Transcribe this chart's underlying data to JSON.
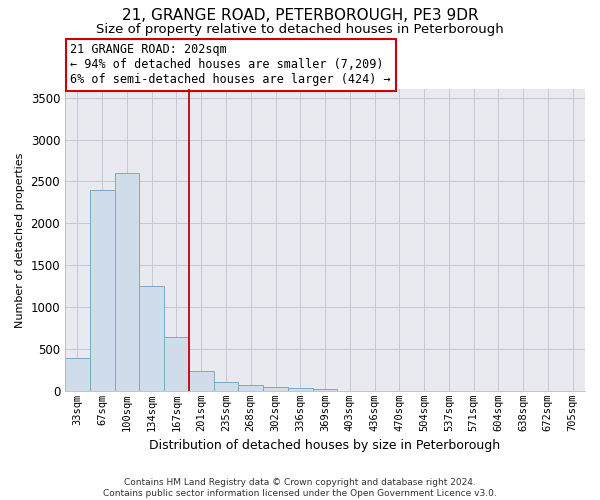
{
  "title": "21, GRANGE ROAD, PETERBOROUGH, PE3 9DR",
  "subtitle": "Size of property relative to detached houses in Peterborough",
  "xlabel": "Distribution of detached houses by size in Peterborough",
  "ylabel": "Number of detached properties",
  "footer_line1": "Contains HM Land Registry data © Crown copyright and database right 2024.",
  "footer_line2": "Contains public sector information licensed under the Open Government Licence v3.0.",
  "bar_labels": [
    "33sqm",
    "67sqm",
    "100sqm",
    "134sqm",
    "167sqm",
    "201sqm",
    "235sqm",
    "268sqm",
    "302sqm",
    "336sqm",
    "369sqm",
    "403sqm",
    "436sqm",
    "470sqm",
    "504sqm",
    "537sqm",
    "571sqm",
    "604sqm",
    "638sqm",
    "672sqm",
    "705sqm"
  ],
  "bar_values": [
    390,
    2400,
    2600,
    1250,
    640,
    240,
    110,
    70,
    50,
    30,
    20,
    0,
    0,
    0,
    0,
    0,
    0,
    0,
    0,
    0,
    0
  ],
  "bar_color": "#cfdcea",
  "bar_edge_color": "#7aaac8",
  "grid_color": "#c8c8d0",
  "grid_bg_color": "#e8eaf0",
  "vline_x": 4.5,
  "vline_color": "#cc0000",
  "annotation_text": "21 GRANGE ROAD: 202sqm\n← 94% of detached houses are smaller (7,209)\n6% of semi-detached houses are larger (424) →",
  "annotation_box_color": "#ffffff",
  "annotation_box_edge_color": "#cc0000",
  "ylim": [
    0,
    3600
  ],
  "yticks": [
    0,
    500,
    1000,
    1500,
    2000,
    2500,
    3000,
    3500
  ],
  "title_fontsize": 11,
  "subtitle_fontsize": 9.5,
  "annotation_fontsize": 8.5,
  "ylabel_fontsize": 8,
  "xlabel_fontsize": 9,
  "background_color": "#ffffff"
}
